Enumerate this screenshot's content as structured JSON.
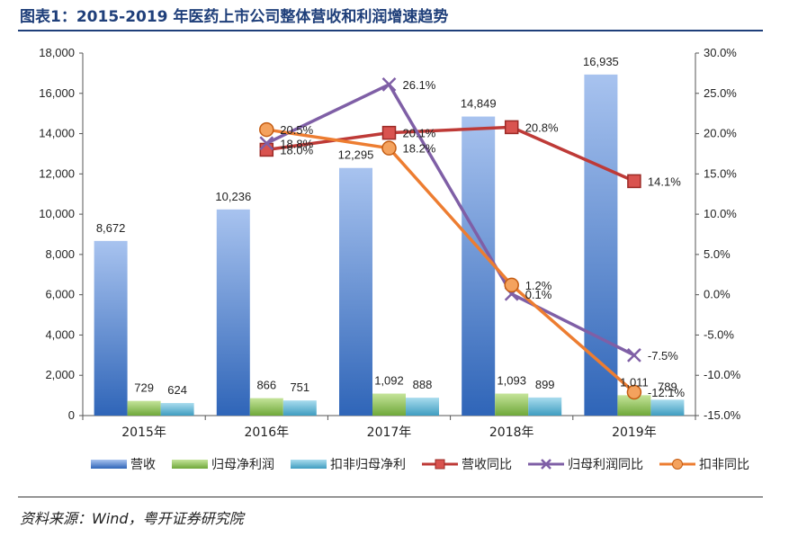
{
  "header": {
    "title": "图表1：2015-2019 年医药上市公司整体营收和利润增速趋势"
  },
  "footer": {
    "source": "资料来源：Wind，粤开证券研究院"
  },
  "chart_data": {
    "type": "bar",
    "categories": [
      "2015年",
      "2016年",
      "2017年",
      "2018年",
      "2019年"
    ],
    "series": [
      {
        "name": "营收",
        "kind": "bar",
        "axis": "left",
        "values": [
          8672,
          10236,
          12295,
          14849,
          16935
        ],
        "labels": [
          "8,672",
          "10,236",
          "12,295",
          "14,849",
          "16,935"
        ],
        "color": "#4472c4"
      },
      {
        "name": "归母净利润",
        "kind": "bar",
        "axis": "left",
        "values": [
          729,
          866,
          1092,
          1093,
          1011
        ],
        "labels": [
          "729",
          "866",
          "1,092",
          "1,093",
          "1,011"
        ],
        "color": "#8fc34a"
      },
      {
        "name": "扣非归母净利",
        "kind": "bar",
        "axis": "left",
        "values": [
          624,
          751,
          888,
          899,
          789
        ],
        "labels": [
          "624",
          "751",
          "888",
          "899",
          "789"
        ],
        "color": "#4bacc6"
      },
      {
        "name": "营收同比",
        "kind": "line",
        "axis": "right",
        "marker": "square",
        "values": [
          null,
          18.0,
          20.1,
          20.8,
          14.1
        ],
        "labels": [
          "",
          "18.0%",
          "20.1%",
          "20.8%",
          "14.1%"
        ],
        "color": "#be3a37"
      },
      {
        "name": "归母利润同比",
        "kind": "line",
        "axis": "right",
        "marker": "x",
        "values": [
          null,
          18.8,
          26.1,
          0.1,
          -7.5
        ],
        "labels": [
          "",
          "18.8%",
          "26.1%",
          "0.1%",
          "-7.5%"
        ],
        "color": "#7f5fa6"
      },
      {
        "name": "扣非同比",
        "kind": "line",
        "axis": "right",
        "marker": "circle",
        "values": [
          null,
          20.5,
          18.2,
          1.2,
          -12.1
        ],
        "labels": [
          "",
          "20.5%",
          "18.2%",
          "1.2%",
          "-12.1%"
        ],
        "color": "#ed7d31"
      }
    ],
    "y_left": {
      "min": 0,
      "max": 18000,
      "step": 2000,
      "ticks": [
        "0",
        "2,000",
        "4,000",
        "6,000",
        "8,000",
        "10,000",
        "12,000",
        "14,000",
        "16,000",
        "18,000"
      ]
    },
    "y_right": {
      "min": -15,
      "max": 30,
      "step": 5,
      "ticks": [
        "-15.0%",
        "-10.0%",
        "-5.0%",
        "0.0%",
        "5.0%",
        "10.0%",
        "15.0%",
        "20.0%",
        "25.0%",
        "30.0%"
      ]
    },
    "legend": {
      "position": "bottom"
    },
    "grid": false
  }
}
